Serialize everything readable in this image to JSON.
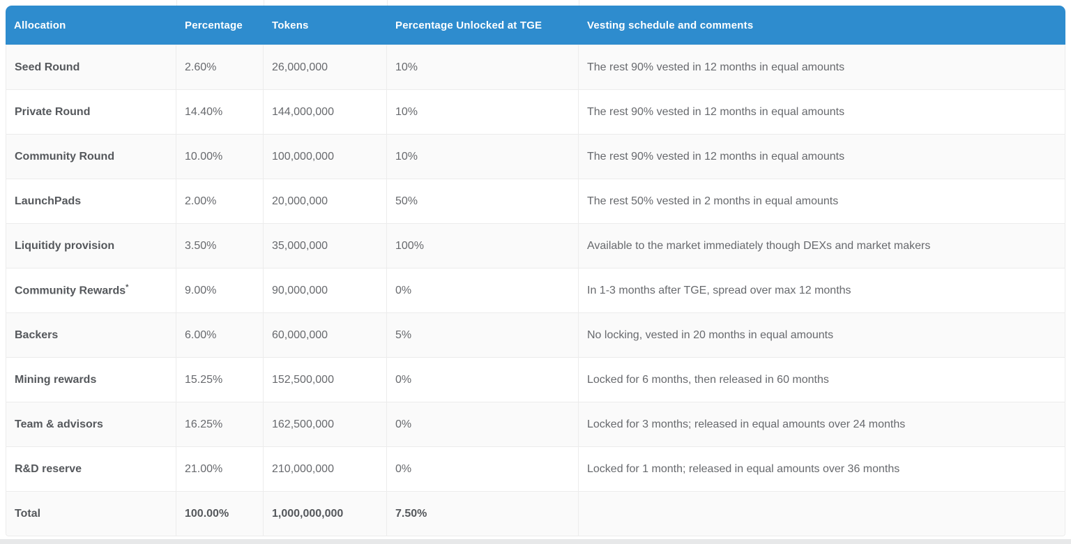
{
  "theme": {
    "header_bg": "#2e8cce",
    "header_text": "#ffffff",
    "row_alt_bg": "#fafafa",
    "row_bg": "#ffffff",
    "border": "#ececec",
    "label_text": "#55585c",
    "body_text": "#67696d"
  },
  "table": {
    "columns": [
      {
        "key": "allocation",
        "label": "Allocation"
      },
      {
        "key": "percentage",
        "label": "Percentage"
      },
      {
        "key": "tokens",
        "label": "Tokens"
      },
      {
        "key": "unlocked_tge",
        "label": "Percentage Unlocked at TGE"
      },
      {
        "key": "vesting",
        "label": "Vesting schedule and comments"
      }
    ],
    "rows": [
      {
        "allocation": "Seed Round",
        "note": "",
        "percentage": "2.60%",
        "tokens": "26,000,000",
        "unlocked_tge": "10%",
        "vesting": "The rest 90% vested in 12 months in equal amounts",
        "is_total": false
      },
      {
        "allocation": "Private Round",
        "note": "",
        "percentage": "14.40%",
        "tokens": "144,000,000",
        "unlocked_tge": "10%",
        "vesting": "The rest 90% vested in 12 months in equal amounts",
        "is_total": false
      },
      {
        "allocation": "Community Round",
        "note": "",
        "percentage": "10.00%",
        "tokens": "100,000,000",
        "unlocked_tge": "10%",
        "vesting": "The rest 90% vested in 12 months in equal amounts",
        "is_total": false
      },
      {
        "allocation": "LaunchPads",
        "note": "",
        "percentage": "2.00%",
        "tokens": "20,000,000",
        "unlocked_tge": "50%",
        "vesting": "The rest 50% vested in 2 months in equal amounts",
        "is_total": false
      },
      {
        "allocation": "Liquitidy provision",
        "note": "",
        "percentage": "3.50%",
        "tokens": "35,000,000",
        "unlocked_tge": "100%",
        "vesting": "Available to the market immediately though DEXs and market makers",
        "is_total": false
      },
      {
        "allocation": "Community Rewards",
        "note": "*",
        "percentage": "9.00%",
        "tokens": "90,000,000",
        "unlocked_tge": "0%",
        "vesting": "In 1-3 months after TGE, spread over max 12 months",
        "is_total": false
      },
      {
        "allocation": "Backers",
        "note": "",
        "percentage": "6.00%",
        "tokens": "60,000,000",
        "unlocked_tge": "5%",
        "vesting": "No locking, vested in 20 months in equal amounts",
        "is_total": false
      },
      {
        "allocation": "Mining rewards",
        "note": "",
        "percentage": "15.25%",
        "tokens": "152,500,000",
        "unlocked_tge": "0%",
        "vesting": "Locked for 6 months, then released in 60 months",
        "is_total": false
      },
      {
        "allocation": "Team & advisors",
        "note": "",
        "percentage": "16.25%",
        "tokens": "162,500,000",
        "unlocked_tge": "0%",
        "vesting": "Locked for 3 months; released in equal amounts over 24 months",
        "is_total": false
      },
      {
        "allocation": "R&D reserve",
        "note": "",
        "percentage": "21.00%",
        "tokens": "210,000,000",
        "unlocked_tge": "0%",
        "vesting": "Locked for 1 month; released in equal amounts over 36 months",
        "is_total": false
      },
      {
        "allocation": "Total",
        "note": "",
        "percentage": "100.00%",
        "tokens": "1,000,000,000",
        "unlocked_tge": "7.50%",
        "vesting": "",
        "is_total": true
      }
    ]
  }
}
